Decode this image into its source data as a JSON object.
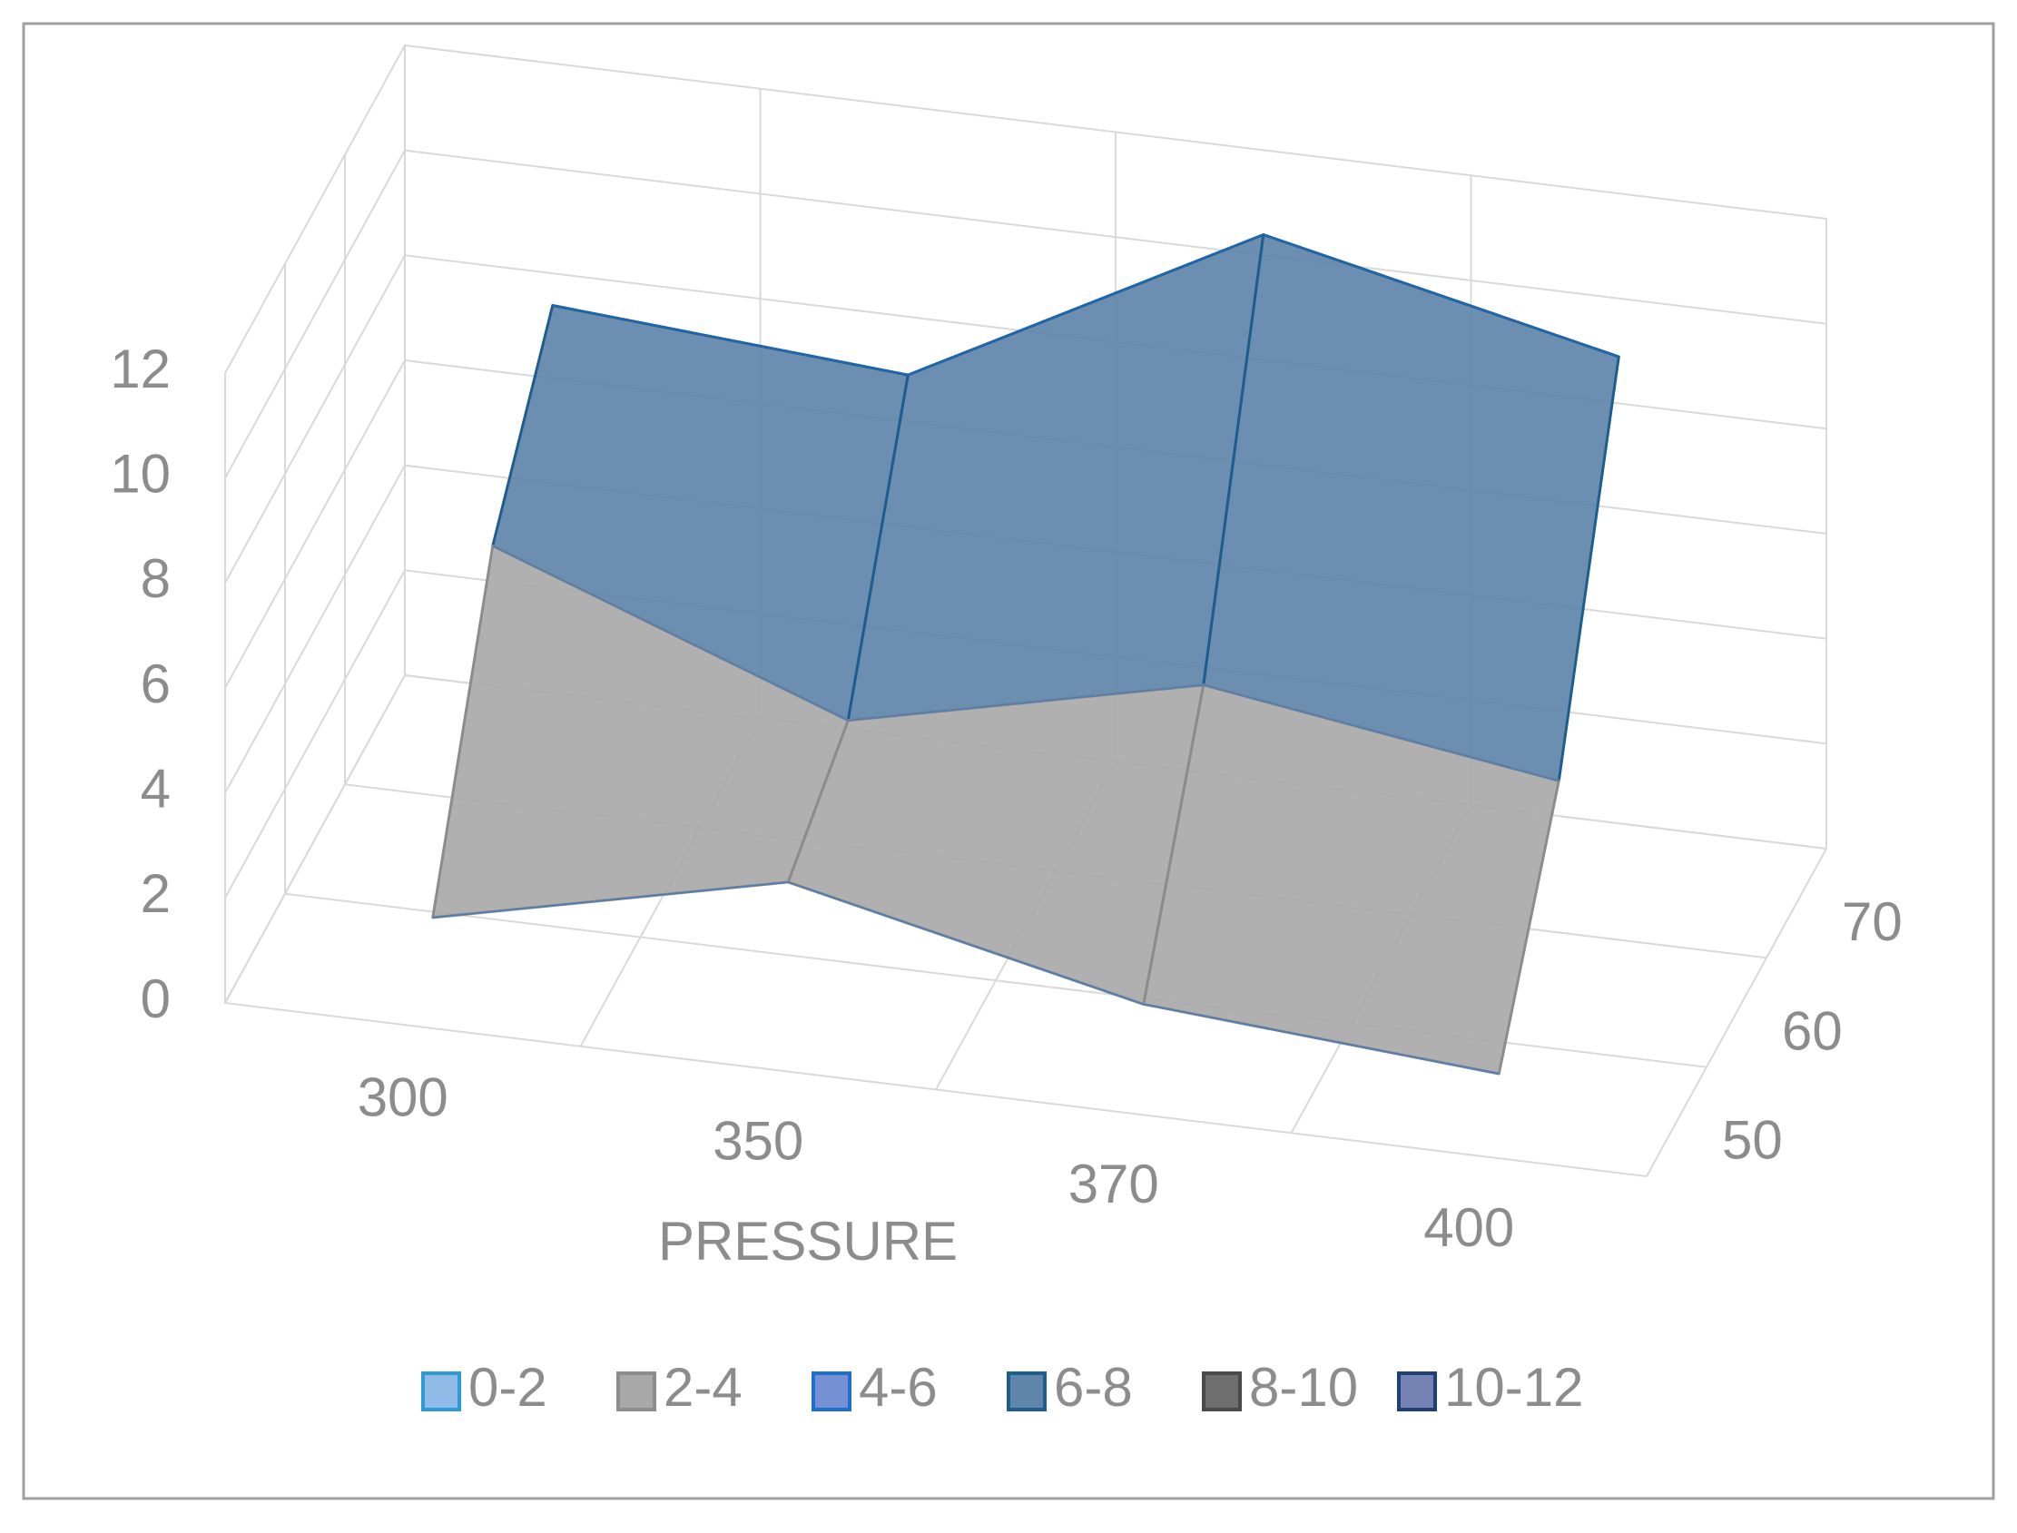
{
  "chart_data": {
    "type": "surface",
    "x_label": "PRESSURE",
    "categories": [
      "300",
      "350",
      "370",
      "400"
    ],
    "series": [
      {
        "name": "50",
        "values": [
          1,
          2.5,
          1,
          0.5
        ]
      },
      {
        "name": "60",
        "values": [
          6,
          3.5,
          5,
          4
        ]
      },
      {
        "name": "70",
        "values": [
          8.5,
          8,
          11.5,
          10
        ]
      }
    ],
    "zlim": [
      0,
      12
    ],
    "zticks": [
      0,
      2,
      4,
      6,
      8,
      10,
      12
    ],
    "bands": {
      "labels": [
        "0-2",
        "2-4",
        "4-6",
        "6-8",
        "8-10",
        "10-12"
      ],
      "colors": [
        "#8fbbe6",
        "#a9a9a9",
        "#7591d4",
        "#5f86aa",
        "#6e6e6e",
        "#7483b4"
      ],
      "edges": [
        "#2e9bd9",
        "#8c8c8c",
        "#1f6fd1",
        "#1d5e8e",
        "#4a4a4a",
        "#1f3f78"
      ]
    },
    "grid": true
  }
}
